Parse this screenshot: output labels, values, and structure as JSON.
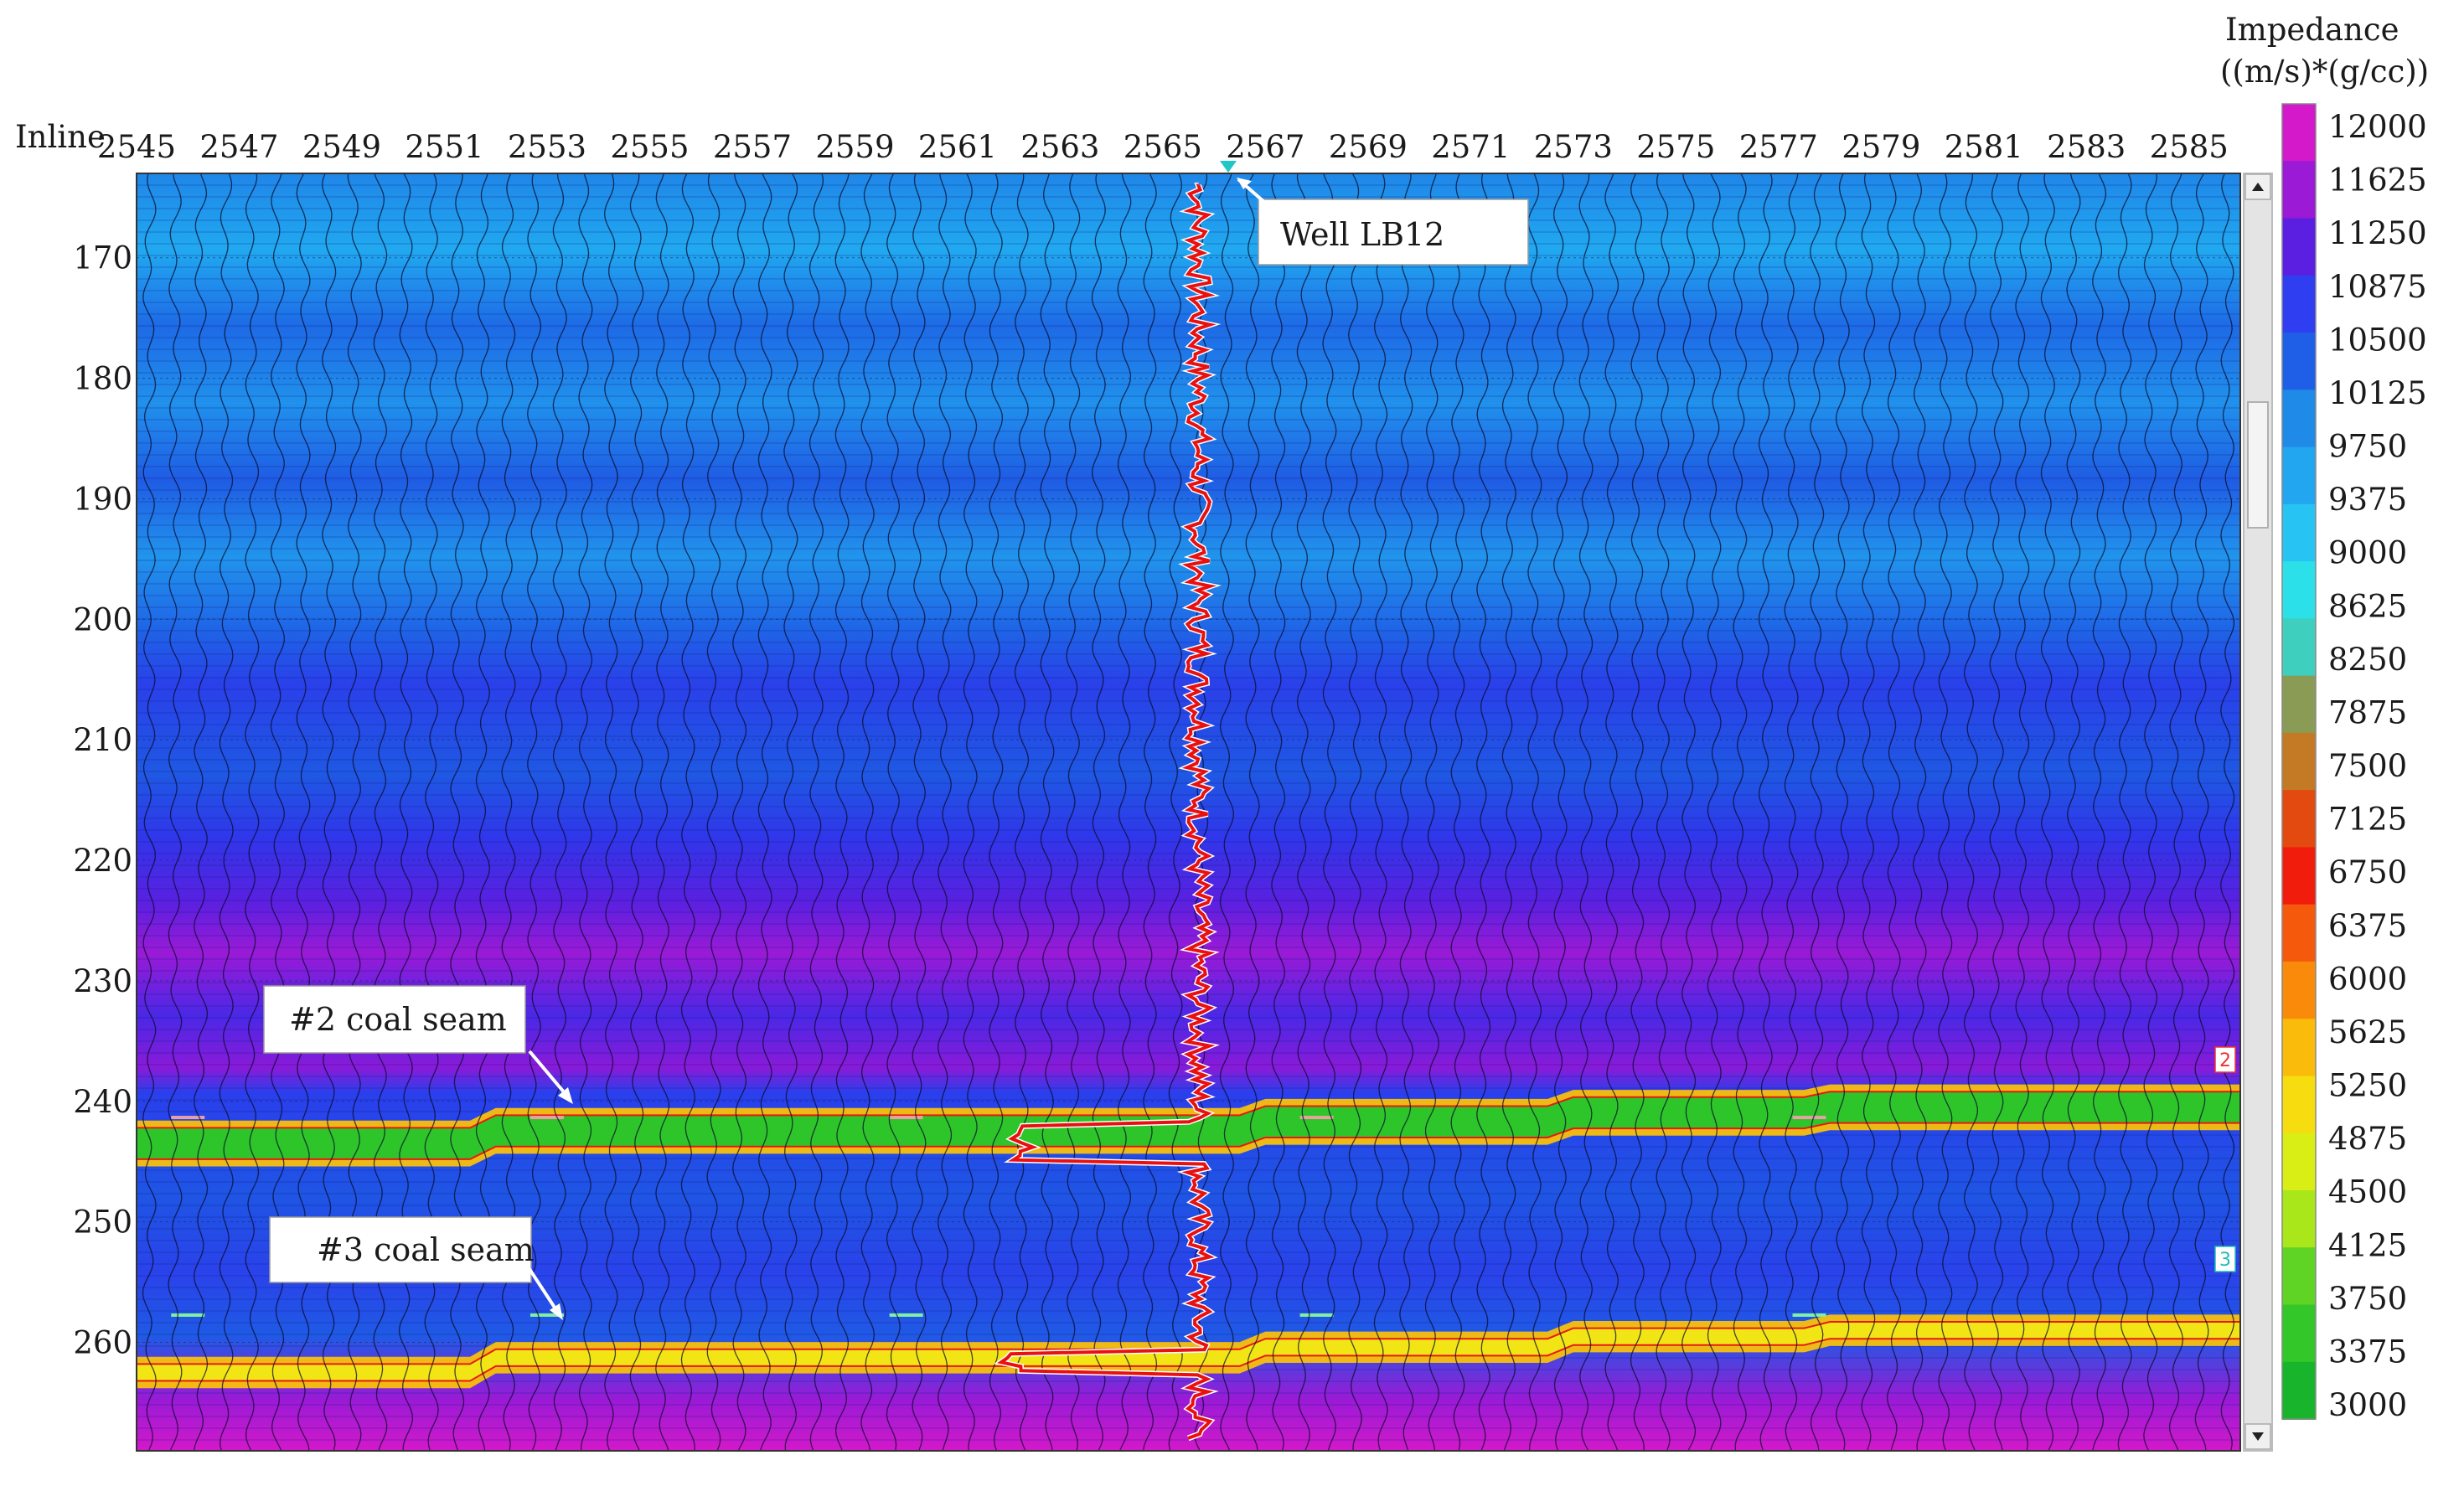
{
  "chart_data": {
    "type": "heatmap",
    "y_axis_label": "Inline",
    "x_ticks": [
      "2545",
      "2547",
      "2549",
      "2551",
      "2553",
      "2555",
      "2557",
      "2559",
      "2561",
      "2563",
      "2565",
      "2567",
      "2569",
      "2571",
      "2573",
      "2575",
      "2577",
      "2579",
      "2581",
      "2583",
      "2585"
    ],
    "y_ticks": [
      "170",
      "180",
      "190",
      "200",
      "210",
      "220",
      "230",
      "240",
      "250",
      "260"
    ],
    "x_range": [
      2545,
      2586
    ],
    "y_range": [
      163,
      269
    ],
    "colorbar": {
      "title_line1": "Impedance",
      "title_line2": "((m/s)*(g/cc))",
      "labels": [
        "12000",
        "11625",
        "11250",
        "10875",
        "10500",
        "10125",
        "9750",
        "9375",
        "9000",
        "8625",
        "8250",
        "7875",
        "7500",
        "7125",
        "6750",
        "6375",
        "6000",
        "5625",
        "5250",
        "4875",
        "4500",
        "4125",
        "3750",
        "3375",
        "3000"
      ],
      "range": [
        3000,
        12000
      ],
      "colors": [
        "#d319c9",
        "#9a1ad6",
        "#5a1fe0",
        "#2f3ef0",
        "#1f5fe8",
        "#1f8ae8",
        "#22a6f0",
        "#27c3f2",
        "#2be0e8",
        "#3ecfbf",
        "#8a9b56",
        "#c47a25",
        "#e24a10",
        "#f21c0c",
        "#f55a0c",
        "#f98a0a",
        "#fbbb0a",
        "#f7dd10",
        "#d9ee14",
        "#a9e61a",
        "#5fd425",
        "#33c72a",
        "#18b52c"
      ]
    },
    "well": {
      "name": "Well LB12",
      "xline": 2566,
      "log_color": "#e81010"
    },
    "horizons": [
      {
        "name": "#2 coal seam",
        "marker": "2",
        "inline_at_2545": 243.5,
        "inline_at_2585": 240.5
      },
      {
        "name": "#3 coal seam",
        "marker": "3",
        "inline_at_2545": 262.5,
        "inline_at_2585": 259.0
      }
    ],
    "grid": true
  }
}
